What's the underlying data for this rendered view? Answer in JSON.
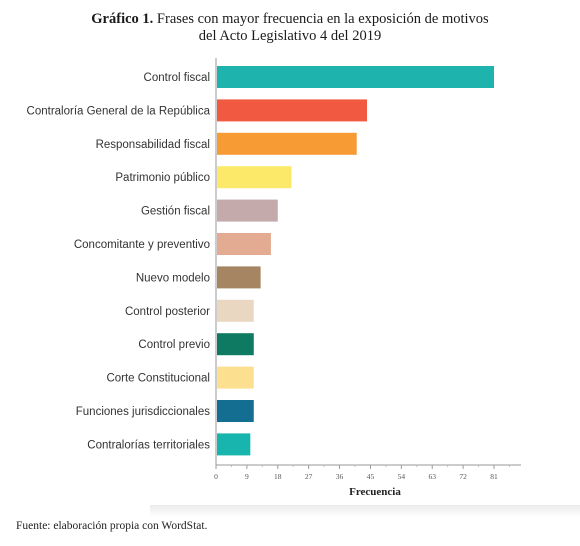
{
  "title": {
    "lead": "Gráfico 1.",
    "line1_rest": "Frases con mayor frecuencia en la exposición de motivos",
    "line2": "del Acto Legislativo 4 del 2019"
  },
  "source": "Fuente: elaboración propia con WordStat.",
  "chart_data": {
    "type": "bar",
    "orientation": "horizontal",
    "categories": [
      "Control fiscal",
      "Contraloría General de la República",
      "Responsabilidad fiscal",
      "Patrimonio público",
      "Gestión fiscal",
      "Concomitante y preventivo",
      "Nuevo modelo",
      "Control posterior",
      "Control previo",
      "Corte Constitucional",
      "Funciones jurisdiccionales",
      "Contralorías territoriales"
    ],
    "values": [
      81,
      44,
      41,
      22,
      18,
      16,
      13,
      11,
      11,
      11,
      11,
      10
    ],
    "colors": [
      "#1fb3ad",
      "#f15a40",
      "#f79b34",
      "#fce96a",
      "#c4aaaa",
      "#e2ab92",
      "#a58562",
      "#e9d7c1",
      "#0e7a61",
      "#fde08f",
      "#146e91",
      "#17b5ae"
    ],
    "xlabel": "Frecuencia",
    "ylabel": "",
    "xlim": [
      0,
      90
    ],
    "xticks": [
      0,
      9,
      18,
      27,
      36,
      45,
      54,
      63,
      72,
      81
    ],
    "grid": false,
    "legend": "none"
  }
}
